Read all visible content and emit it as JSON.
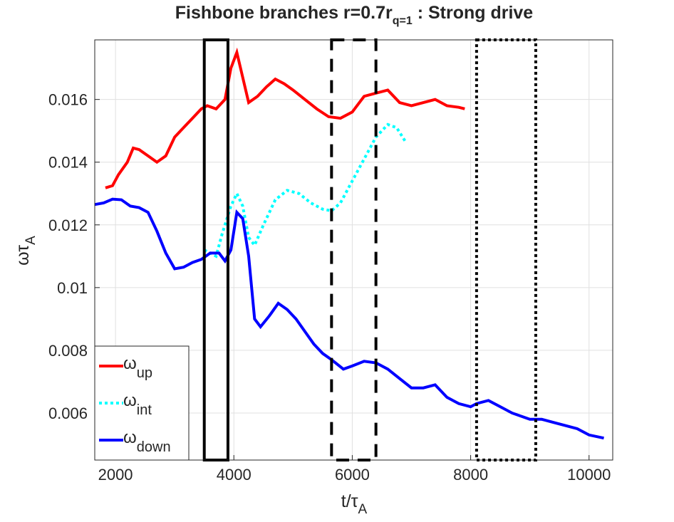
{
  "chart_data": {
    "type": "line",
    "title": "Fishbone branches r=0.7r",
    "title_subscript": "q=1",
    "title_suffix": " : Strong drive",
    "x_label": "t/τ",
    "x_label_subscript": "A",
    "y_label": "ωτ",
    "y_label_subscript": "A",
    "xlim": [
      1650,
      10400
    ],
    "ylim": [
      0.0045,
      0.0179
    ],
    "xticks": [
      2000,
      4000,
      6000,
      8000,
      10000
    ],
    "yticks": [
      0.006,
      0.008,
      0.01,
      0.012,
      0.014,
      0.016
    ],
    "grid": true,
    "legend": "lower left",
    "series": [
      {
        "name": "ω",
        "subscript": "up",
        "color": "#ff0000",
        "style": "solid",
        "x": [
          1830,
          1950,
          2050,
          2200,
          2300,
          2400,
          2550,
          2700,
          2850,
          3000,
          3150,
          3300,
          3450,
          3550,
          3700,
          3850,
          3950,
          4050,
          4150,
          4250,
          4400,
          4550,
          4700,
          4850,
          5000,
          5200,
          5400,
          5600,
          5800,
          6000,
          6200,
          6400,
          6600,
          6800,
          7000,
          7200,
          7400,
          7600,
          7800,
          7900
        ],
        "values": [
          0.01318,
          0.01325,
          0.0136,
          0.014,
          0.01445,
          0.0144,
          0.0142,
          0.014,
          0.0142,
          0.0148,
          0.0151,
          0.0154,
          0.0157,
          0.0158,
          0.0157,
          0.016,
          0.017,
          0.0175,
          0.0167,
          0.0159,
          0.0161,
          0.0164,
          0.01665,
          0.0165,
          0.0163,
          0.016,
          0.0157,
          0.01545,
          0.0154,
          0.0156,
          0.0161,
          0.0162,
          0.0163,
          0.0159,
          0.0158,
          0.0159,
          0.016,
          0.0158,
          0.01575,
          0.0157
        ]
      },
      {
        "name": "ω",
        "subscript": "int",
        "color": "#00ffff",
        "style": "dotted",
        "x": [
          3500,
          3700,
          3800,
          3950,
          4050,
          4150,
          4250,
          4350,
          4500,
          4700,
          4900,
          5100,
          5300,
          5500,
          5650,
          5800,
          6000,
          6200,
          6400,
          6600,
          6750,
          6900
        ],
        "values": [
          0.0112,
          0.011,
          0.0117,
          0.0126,
          0.013,
          0.0126,
          0.0116,
          0.01135,
          0.012,
          0.0128,
          0.0131,
          0.013,
          0.0127,
          0.0125,
          0.01245,
          0.0127,
          0.0134,
          0.0141,
          0.0148,
          0.0152,
          0.0151,
          0.01465
        ]
      },
      {
        "name": "ω",
        "subscript": "down",
        "color": "#0000ff",
        "style": "solid",
        "x": [
          1650,
          1800,
          1950,
          2100,
          2250,
          2400,
          2550,
          2700,
          2850,
          3000,
          3150,
          3300,
          3450,
          3600,
          3750,
          3850,
          3950,
          4050,
          4150,
          4250,
          4350,
          4450,
          4600,
          4750,
          4900,
          5050,
          5200,
          5350,
          5500,
          5650,
          5850,
          6000,
          6200,
          6400,
          6600,
          6800,
          7000,
          7200,
          7400,
          7600,
          7800,
          8000,
          8100,
          8300,
          8500,
          8700,
          9000,
          9200,
          9400,
          9600,
          9800,
          10000,
          10250
        ],
        "values": [
          0.01265,
          0.0127,
          0.01282,
          0.0128,
          0.0126,
          0.01255,
          0.0124,
          0.0118,
          0.0111,
          0.0106,
          0.01065,
          0.0108,
          0.0109,
          0.0111,
          0.0111,
          0.01085,
          0.0112,
          0.0124,
          0.0122,
          0.011,
          0.009,
          0.00875,
          0.0091,
          0.0095,
          0.0093,
          0.009,
          0.0086,
          0.0082,
          0.0079,
          0.0077,
          0.0074,
          0.0075,
          0.00765,
          0.0076,
          0.0074,
          0.0071,
          0.0068,
          0.0068,
          0.0069,
          0.0065,
          0.0063,
          0.0062,
          0.0063,
          0.0064,
          0.0062,
          0.006,
          0.0058,
          0.0058,
          0.0057,
          0.0056,
          0.0055,
          0.0053,
          0.0052
        ]
      }
    ],
    "boxes": [
      {
        "x": [
          3500,
          3900
        ],
        "style": "solid"
      },
      {
        "x": [
          5650,
          6400
        ],
        "style": "dashed"
      },
      {
        "x": [
          8100,
          9100
        ],
        "style": "dotted"
      }
    ]
  }
}
